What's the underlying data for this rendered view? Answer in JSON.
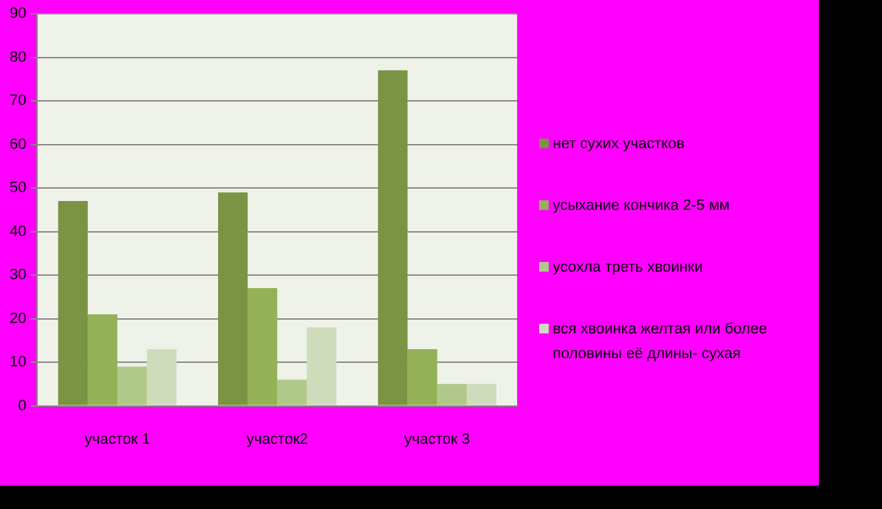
{
  "chart_data": {
    "type": "bar",
    "categories": [
      "участок 1",
      "участок2",
      "участок 3"
    ],
    "series": [
      {
        "name": "нет сухих участков",
        "color": "#7a9443",
        "values": [
          47,
          49,
          77
        ]
      },
      {
        "name": "усыхание кончика 2-5 мм",
        "color": "#93b157",
        "values": [
          21,
          27,
          13
        ]
      },
      {
        "name": "усохла треть хвоинки",
        "color": "#b0c88a",
        "values": [
          9,
          6,
          5
        ]
      },
      {
        "name": "вся хвоинка желтая или более половины её длины- сухая",
        "color": "#cfdcbb",
        "values": [
          13,
          18,
          5
        ]
      }
    ],
    "ylim": [
      0,
      90
    ],
    "yticks": [
      0,
      10,
      20,
      30,
      40,
      50,
      60,
      70,
      80,
      90
    ],
    "grid": "y",
    "legend": "right"
  }
}
